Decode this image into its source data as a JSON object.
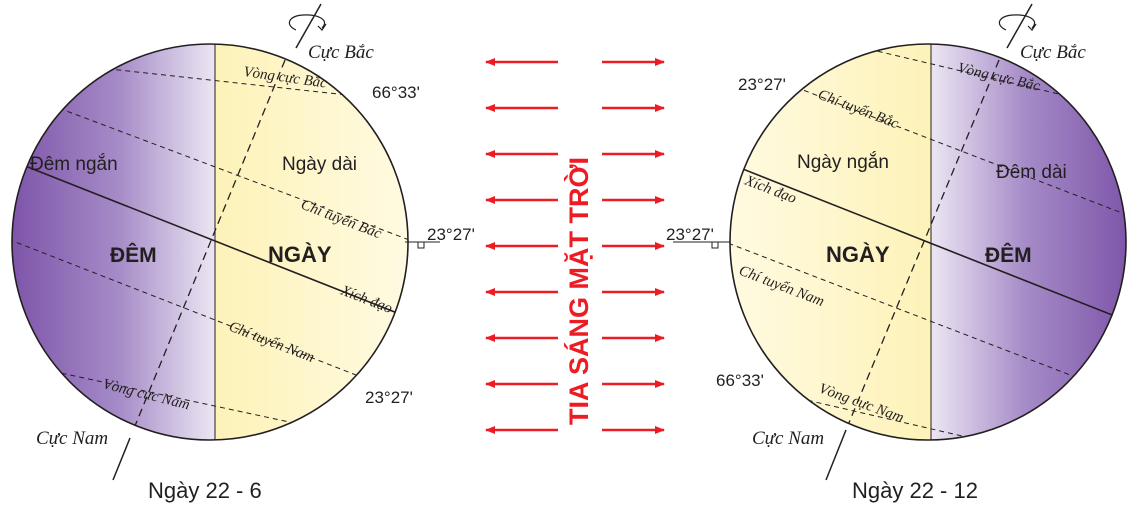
{
  "colors": {
    "night_dark": "#7a4fa6",
    "night_light": "#e6def0",
    "day_light": "#fff8cf",
    "day_edge": "#fdf2b8",
    "arrow": "#ed1c24",
    "line": "#231f20"
  },
  "sun_label": "TIA SÁNG MẶT TRỜI",
  "arrow_rows": 9,
  "june": {
    "caption": "Ngày 22 - 6",
    "north_pole": "Cực Bắc",
    "south_pole": "Cực Nam",
    "arctic_circle": "Vòng cực Bắc",
    "antarctic_circle": "Vòng cực Nam",
    "tropic_cancer": "Chí tuyến Bắc",
    "tropic_capricorn": "Chí tuyến Nam",
    "equator": "Xích đạo",
    "short_night": "Đêm ngắn",
    "long_day": "Ngày dài",
    "night": "ĐÊM",
    "day": "NGÀY",
    "angle_66": "66°33'",
    "angle_23_mid": "23°27'",
    "angle_23_low": "23°27'"
  },
  "december": {
    "caption": "Ngày 22 - 12",
    "north_pole": "Cực Bắc",
    "south_pole": "Cực Nam",
    "arctic_circle": "Vòng cực Bắc",
    "antarctic_circle": "Vòng cực Nam",
    "tropic_cancer": "Chí tuyến Bắc",
    "tropic_capricorn": "Chí tuyến Nam",
    "equator": "Xích đạo",
    "short_day": "Ngày ngắn",
    "long_night": "Đêm dài",
    "night": "ĐÊM",
    "day": "NGÀY",
    "angle_23_top": "23°27'",
    "angle_23_mid": "23°27'",
    "angle_66": "66°33'"
  }
}
